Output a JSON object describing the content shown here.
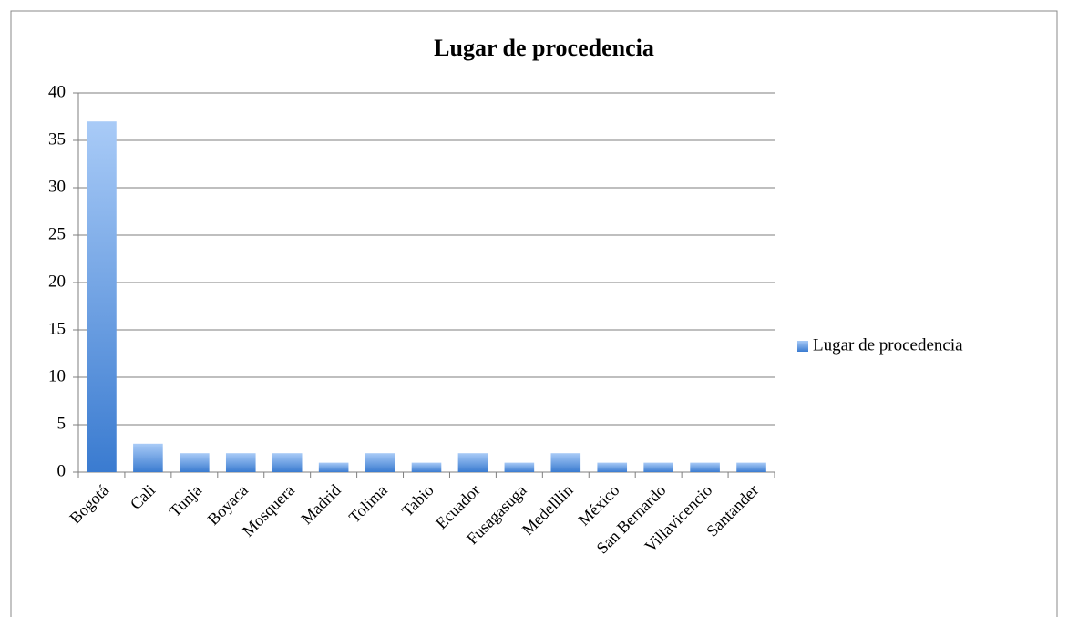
{
  "chart_data": {
    "type": "bar",
    "title": "Lugar de procedencia",
    "categories": [
      "Bogotá",
      "Cali",
      "Tunja",
      "Boyaca",
      "Mosquera",
      "Madrid",
      "Tolima",
      "Tabio",
      "Ecuador",
      "Fusagasuga",
      "Medelllin",
      "México",
      "San Bernardo",
      "Villavicencio",
      "Santander"
    ],
    "series": [
      {
        "name": "Lugar de procedencia",
        "color": "#4f8ad9",
        "values": [
          37,
          3,
          2,
          2,
          2,
          1,
          2,
          1,
          2,
          1,
          2,
          1,
          1,
          1,
          1
        ]
      }
    ],
    "ylim": [
      0,
      40
    ],
    "yticks": [
      0,
      5,
      10,
      15,
      20,
      25,
      30,
      35,
      40
    ],
    "grid": true,
    "legend": "right"
  }
}
